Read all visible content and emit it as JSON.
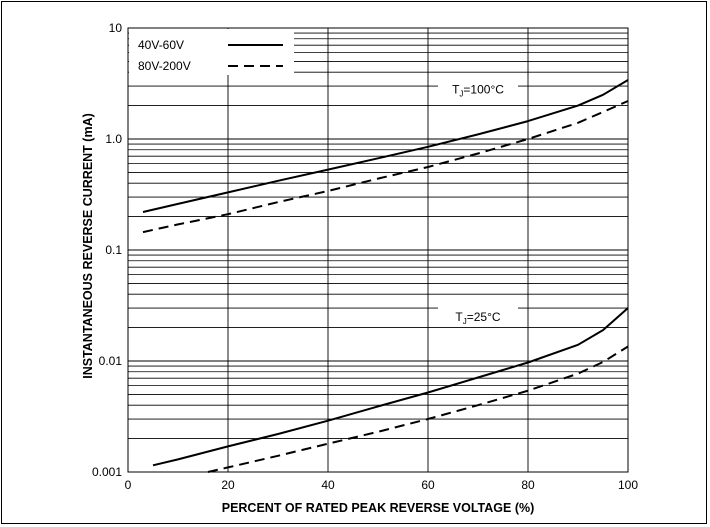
{
  "chart_data": {
    "type": "line",
    "xlabel": "PERCENT OF RATED PEAK REVERSE VOLTAGE (%)",
    "ylabel": "INSTANTANEOUS REVERSE CURRENT (mA)",
    "xlim": [
      0,
      100
    ],
    "ylim": [
      0.001,
      10
    ],
    "yscale": "log",
    "grid": true,
    "x_ticks": [
      0,
      20,
      40,
      60,
      80,
      100
    ],
    "x_tick_labels": [
      "0",
      "20",
      "40",
      "60",
      "80",
      "100"
    ],
    "y_ticks": [
      0.001,
      0.01,
      0.1,
      1,
      10
    ],
    "y_tick_labels": [
      "0.001",
      "0.01",
      "0.1",
      "1.0",
      "10"
    ],
    "legend": {
      "placement": "top-left",
      "entries": [
        {
          "label": "40V-60V",
          "style": "solid"
        },
        {
          "label": "80V-200V",
          "style": "dashed"
        }
      ]
    },
    "annotations": [
      {
        "text": "T",
        "sub": "J",
        "rest": "=100°C",
        "x": 70,
        "y": 2.8
      },
      {
        "text": "T",
        "sub": "J",
        "rest": "=25°C",
        "x": 70,
        "y": 0.025
      }
    ],
    "series": [
      {
        "name": "40V-60V",
        "style": "solid",
        "group": "TJ=100°C",
        "x": [
          3,
          10,
          20,
          30,
          40,
          50,
          60,
          70,
          80,
          90,
          95,
          100
        ],
        "y": [
          0.22,
          0.26,
          0.33,
          0.42,
          0.53,
          0.67,
          0.85,
          1.1,
          1.45,
          2.0,
          2.5,
          3.4
        ]
      },
      {
        "name": "80V-200V",
        "style": "dashed",
        "group": "TJ=100°C",
        "x": [
          3,
          10,
          20,
          30,
          40,
          50,
          60,
          70,
          80,
          90,
          95,
          100
        ],
        "y": [
          0.145,
          0.17,
          0.21,
          0.27,
          0.34,
          0.44,
          0.56,
          0.74,
          1.0,
          1.4,
          1.75,
          2.2
        ]
      },
      {
        "name": "40V-60V",
        "style": "solid",
        "group": "TJ=25°C",
        "x": [
          5,
          10,
          20,
          30,
          40,
          50,
          60,
          70,
          80,
          90,
          95,
          100
        ],
        "y": [
          0.00115,
          0.0013,
          0.0017,
          0.0022,
          0.0029,
          0.0039,
          0.0052,
          0.0071,
          0.0097,
          0.014,
          0.019,
          0.03
        ]
      },
      {
        "name": "80V-200V",
        "style": "dashed",
        "group": "TJ=25°C",
        "x": [
          16,
          20,
          30,
          40,
          50,
          60,
          70,
          80,
          90,
          95,
          100
        ],
        "y": [
          0.001,
          0.0011,
          0.0014,
          0.0018,
          0.0023,
          0.003,
          0.004,
          0.0054,
          0.0077,
          0.0098,
          0.0135
        ]
      }
    ]
  }
}
